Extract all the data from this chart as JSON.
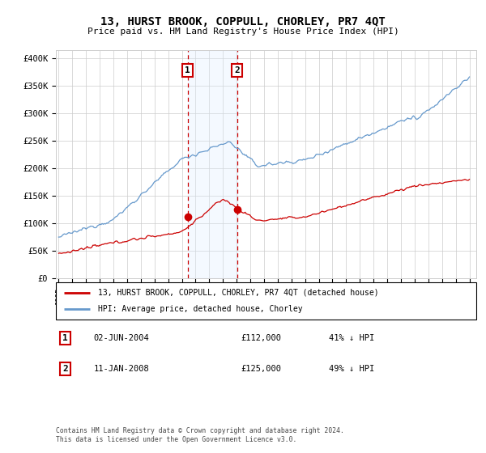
{
  "title": "13, HURST BROOK, COPPULL, CHORLEY, PR7 4QT",
  "subtitle": "Price paid vs. HM Land Registry's House Price Index (HPI)",
  "ylabel_ticks": [
    "£0",
    "£50K",
    "£100K",
    "£150K",
    "£200K",
    "£250K",
    "£300K",
    "£350K",
    "£400K"
  ],
  "ytick_values": [
    0,
    50000,
    100000,
    150000,
    200000,
    250000,
    300000,
    350000,
    400000
  ],
  "ylim": [
    0,
    415000
  ],
  "xlim_start": 1994.8,
  "xlim_end": 2025.5,
  "sale1_date": 2004.42,
  "sale1_price": 112000,
  "sale2_date": 2008.03,
  "sale2_price": 125000,
  "sale1_label": "1",
  "sale2_label": "2",
  "legend_house": "13, HURST BROOK, COPPULL, CHORLEY, PR7 4QT (detached house)",
  "legend_hpi": "HPI: Average price, detached house, Chorley",
  "footer": "Contains HM Land Registry data © Crown copyright and database right 2024.\nThis data is licensed under the Open Government Licence v3.0.",
  "color_red": "#cc0000",
  "color_blue": "#6699cc",
  "color_shade": "#ddeeff",
  "color_grid": "#cccccc",
  "color_box_border": "#cc0000",
  "xticks": [
    1995,
    1996,
    1997,
    1998,
    1999,
    2000,
    2001,
    2002,
    2003,
    2004,
    2005,
    2006,
    2007,
    2008,
    2009,
    2010,
    2011,
    2012,
    2013,
    2014,
    2015,
    2016,
    2017,
    2018,
    2019,
    2020,
    2021,
    2022,
    2023,
    2024,
    2025
  ]
}
